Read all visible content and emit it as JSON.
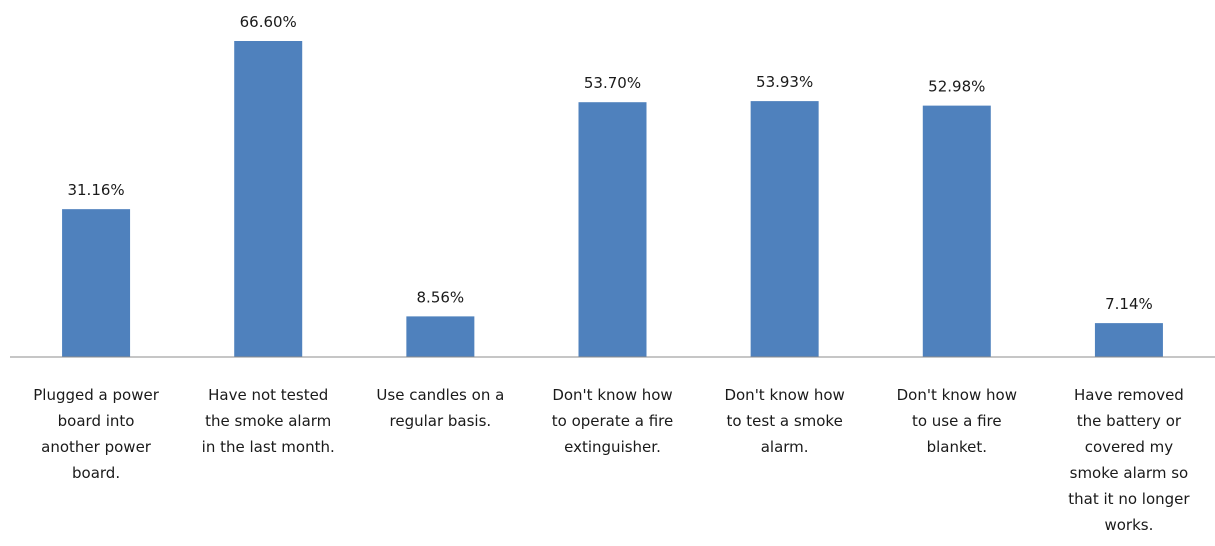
{
  "chart_data": {
    "type": "bar",
    "categories": [
      [
        "Plugged a power",
        "board into",
        "another power",
        "board."
      ],
      [
        "Have not tested",
        "the smoke alarm",
        "in the last month."
      ],
      [
        "Use candles on a",
        "regular basis."
      ],
      [
        "Don't know how",
        "to operate a fire",
        "extinguisher."
      ],
      [
        "Don't know how",
        "to test a smoke",
        "alarm."
      ],
      [
        "Don't know how",
        "to use a fire",
        "blanket."
      ],
      [
        "Have removed",
        "the battery or",
        "covered my",
        "smoke alarm so",
        "that it no longer",
        "works."
      ]
    ],
    "values": [
      31.16,
      66.6,
      8.56,
      53.7,
      53.93,
      52.98,
      7.14
    ],
    "value_labels": [
      "31.16%",
      "66.60%",
      "8.56%",
      "53.70%",
      "53.93%",
      "52.98%",
      "7.14%"
    ],
    "bar_color": "#4f81bd",
    "axis_color": "#8c8c8c",
    "ylim": [
      0,
      66.6
    ],
    "grid": false
  }
}
